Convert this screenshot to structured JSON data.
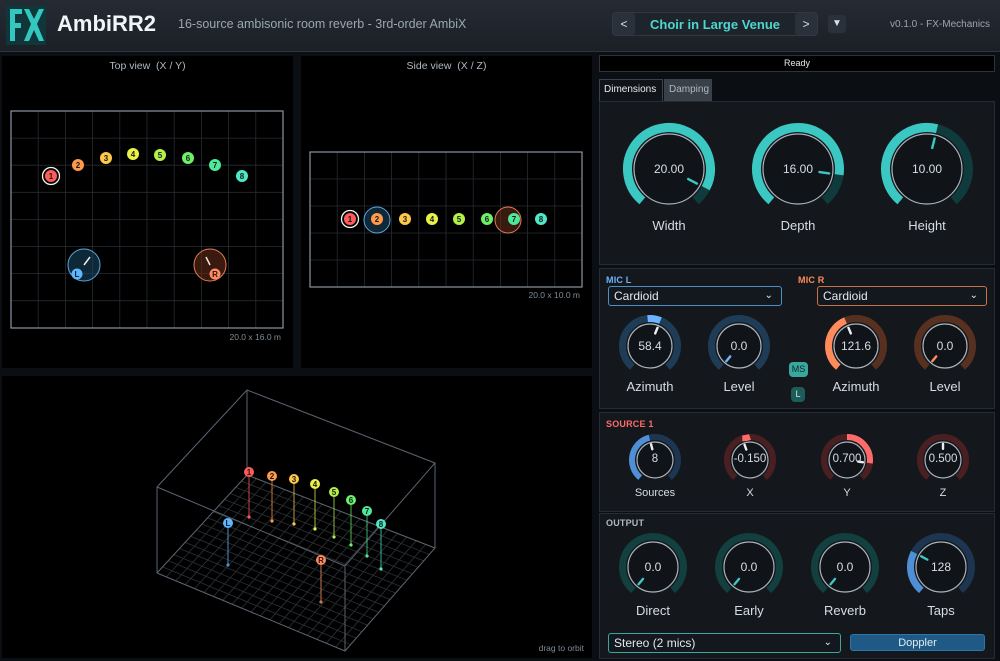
{
  "header": {
    "title": "AmbiRR2",
    "subtitle": "16-source ambisonic room reverb  -  3rd-order AmbiX",
    "preset": "Choir in Large Venue",
    "prev_glyph": "<",
    "next_glyph": ">",
    "menu_glyph": "▼",
    "version": "v0.1.0  -  FX-Mechanics",
    "colors": {
      "accent": "#4fd6cf"
    }
  },
  "top_view": {
    "title": "Top view  (X / Y)",
    "footer": "20.0 x 16.0 m",
    "sources": [
      "1",
      "2",
      "3",
      "4",
      "5",
      "6",
      "7",
      "8"
    ],
    "mics": [
      "L",
      "R"
    ]
  },
  "side_view": {
    "title": "Side view  (X / Z)",
    "footer": "20.0 x 10.0 m",
    "sources": [
      "1",
      "2",
      "3",
      "4",
      "5",
      "6",
      "7",
      "8"
    ]
  },
  "orbit_view": {
    "hint": "drag to orbit",
    "sources": [
      "1",
      "2",
      "3",
      "4",
      "5",
      "6",
      "7",
      "8"
    ],
    "mics": [
      "L",
      "R"
    ]
  },
  "status": "Ready",
  "tabs": [
    "Dimensions",
    "Damping"
  ],
  "dimensions": [
    {
      "name": "Width",
      "value": "20.00",
      "level": 1.0
    },
    {
      "name": "Depth",
      "value": "16.00",
      "level": 0.8
    },
    {
      "name": "Height",
      "value": "10.00",
      "level": 0.5
    }
  ],
  "mic_l": {
    "label": "MIC L",
    "pattern": "Cardioid",
    "azimuth": {
      "name": "Azimuth",
      "value": "58.4"
    },
    "level": {
      "name": "Level",
      "value": "0.0"
    },
    "color": "#6ab4ff"
  },
  "mic_r": {
    "label": "MIC R",
    "pattern": "Cardioid",
    "azimuth": {
      "name": "Azimuth",
      "value": "121.6"
    },
    "level": {
      "name": "Level",
      "value": "0.0"
    },
    "color": "#ff8a5c"
  },
  "ms_button": "MS",
  "link_button": "L",
  "source": {
    "label": "SOURCE 1",
    "knobs": [
      {
        "name": "Sources",
        "value": "8"
      },
      {
        "name": "X",
        "value": "-0.150"
      },
      {
        "name": "Y",
        "value": "0.700"
      },
      {
        "name": "Z",
        "value": "0.500"
      }
    ]
  },
  "output": {
    "label": "OUTPUT",
    "knobs": [
      {
        "name": "Direct",
        "value": "0.0"
      },
      {
        "name": "Early",
        "value": "0.0"
      },
      {
        "name": "Reverb",
        "value": "0.0"
      },
      {
        "name": "Taps",
        "value": "128"
      }
    ],
    "mode": "Stereo (2 mics)",
    "doppler": "Doppler"
  },
  "dropdown_glyph": "⌄"
}
